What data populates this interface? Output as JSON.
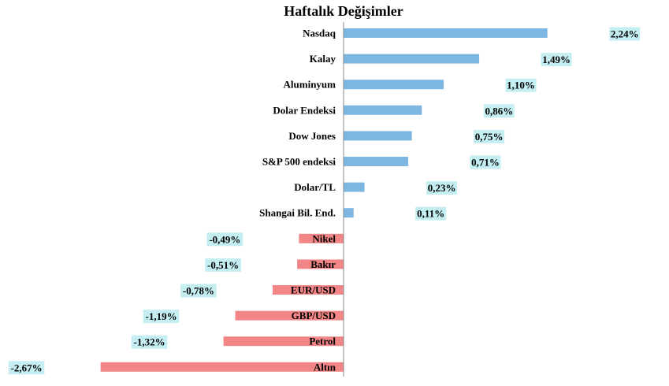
{
  "chart_data": {
    "type": "bar",
    "orientation": "horizontal",
    "title": "Haftalık Değişimler",
    "categories": [
      "Nasdaq",
      "Kalay",
      "Aluminyum",
      "Dolar Endeksi",
      "Dow Jones",
      "S&P 500 endeksi",
      "Dolar/TL",
      "Shangai Bil. End.",
      "Nikel",
      "Bakır",
      "EUR/USD",
      "GBP/USD",
      "Petrol",
      "Altın"
    ],
    "values": [
      2.24,
      1.49,
      1.1,
      0.86,
      0.75,
      0.71,
      0.23,
      0.11,
      -0.49,
      -0.51,
      -0.78,
      -1.19,
      -1.32,
      -2.67
    ],
    "labels": [
      "2,24%",
      "1,49%",
      "1,10%",
      "0,86%",
      "0,75%",
      "0,71%",
      "0,23%",
      "0,11%",
      "-0,49%",
      "-0,51%",
      "-0,78%",
      "-1,19%",
      "-1,32%",
      "-2,67%"
    ],
    "xlim": [
      -2.67,
      2.24
    ],
    "grid": false,
    "legend": "none",
    "colors": {
      "positive": "#7EB6E2",
      "negative": "#F28585",
      "label_background": "#C4EEF2",
      "axis": "#888888"
    }
  }
}
